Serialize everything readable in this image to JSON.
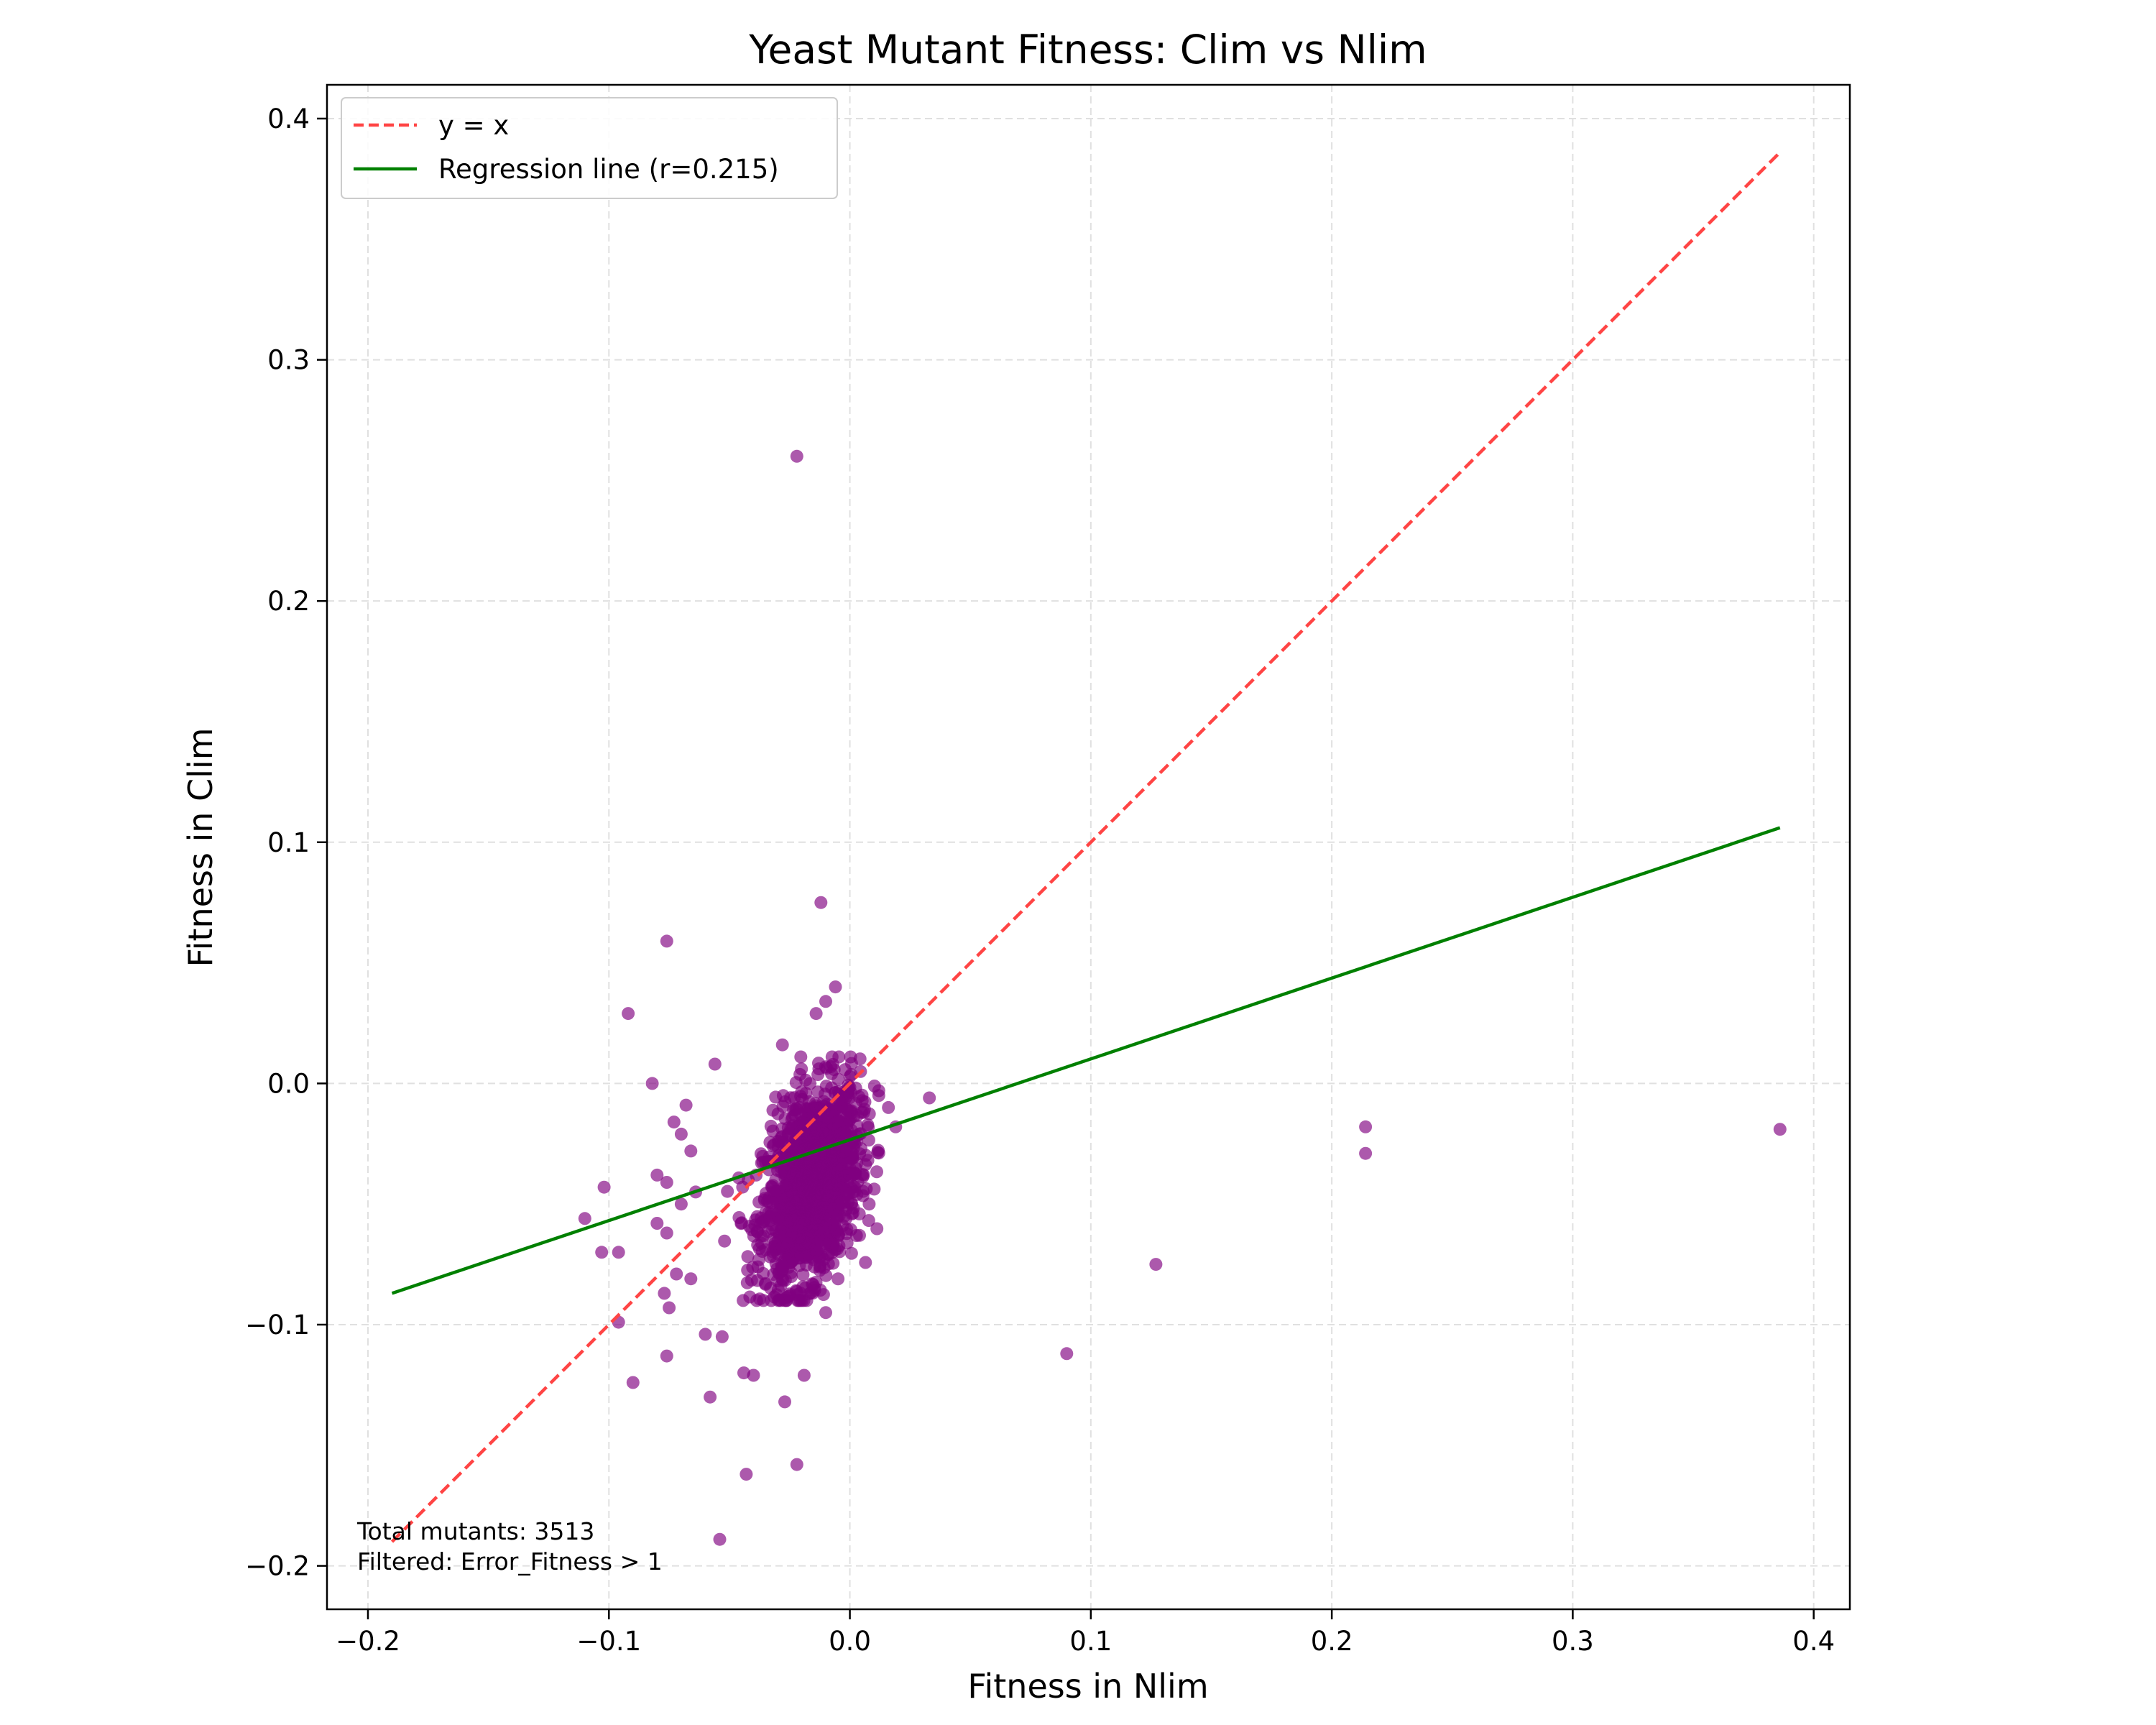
{
  "chart_data": {
    "type": "scatter",
    "title": "Yeast Mutant Fitness: Clim vs Nlim",
    "xlabel": "Fitness in Nlim",
    "ylabel": "Fitness in Clim",
    "xlim": [
      -0.217,
      0.415
    ],
    "ylim": [
      -0.218,
      0.414
    ],
    "x_ticks": [
      -0.2,
      -0.1,
      0.0,
      0.1,
      0.2,
      0.3,
      0.4
    ],
    "x_tick_labels": [
      "−0.2",
      "−0.1",
      "0.0",
      "0.1",
      "0.2",
      "0.3",
      "0.4"
    ],
    "y_ticks": [
      -0.2,
      -0.1,
      0.0,
      0.1,
      0.2,
      0.3,
      0.4
    ],
    "y_tick_labels": [
      "−0.2",
      "−0.1",
      "0.0",
      "0.1",
      "0.2",
      "0.3",
      "0.4"
    ],
    "grid": true,
    "legend_position": "upper-left",
    "colors": {
      "points": "#800080",
      "identity": "#ff4444",
      "regression": "#008000"
    },
    "legend": [
      {
        "label": "y = x",
        "style": "dashed",
        "color": "#ff4444"
      },
      {
        "label": "Regression line (r=0.215)",
        "style": "solid",
        "color": "#008000"
      }
    ],
    "identity_line": {
      "x": [
        -0.19,
        0.386
      ],
      "y": [
        -0.19,
        0.386
      ]
    },
    "regression_line": {
      "x": [
        -0.19,
        0.386
      ],
      "y": [
        -0.087,
        0.106
      ]
    },
    "annotations": [
      "Total mutants: 3513",
      "Filtered: Error_Fitness > 1"
    ],
    "outliers": [
      [
        -0.022,
        0.26
      ],
      [
        -0.012,
        0.075
      ],
      [
        -0.076,
        0.059
      ],
      [
        -0.092,
        0.029
      ],
      [
        -0.006,
        0.04
      ],
      [
        -0.01,
        0.034
      ],
      [
        -0.014,
        0.029
      ],
      [
        -0.028,
        0.016
      ],
      [
        -0.056,
        0.008
      ],
      [
        -0.082,
        0.0
      ],
      [
        -0.068,
        -0.009
      ],
      [
        -0.073,
        -0.016
      ],
      [
        -0.07,
        -0.021
      ],
      [
        -0.066,
        -0.028
      ],
      [
        -0.076,
        -0.041
      ],
      [
        -0.08,
        -0.038
      ],
      [
        -0.11,
        -0.056
      ],
      [
        -0.102,
        -0.043
      ],
      [
        -0.096,
        -0.07
      ],
      [
        -0.103,
        -0.07
      ],
      [
        -0.076,
        -0.062
      ],
      [
        -0.08,
        -0.058
      ],
      [
        -0.07,
        -0.05
      ],
      [
        -0.064,
        -0.045
      ],
      [
        -0.077,
        -0.087
      ],
      [
        -0.072,
        -0.079
      ],
      [
        -0.066,
        -0.081
      ],
      [
        -0.096,
        -0.099
      ],
      [
        -0.09,
        -0.124
      ],
      [
        -0.076,
        -0.113
      ],
      [
        -0.075,
        -0.093
      ],
      [
        -0.06,
        -0.104
      ],
      [
        -0.058,
        -0.13
      ],
      [
        -0.053,
        -0.105
      ],
      [
        -0.044,
        -0.12
      ],
      [
        -0.04,
        -0.121
      ],
      [
        -0.043,
        -0.162
      ],
      [
        -0.022,
        -0.158
      ],
      [
        -0.054,
        -0.189
      ],
      [
        -0.027,
        -0.132
      ],
      [
        -0.019,
        -0.121
      ],
      [
        -0.01,
        -0.095
      ],
      [
        0.019,
        -0.018
      ],
      [
        0.033,
        -0.006
      ],
      [
        0.012,
        -0.003
      ],
      [
        0.016,
        -0.01
      ],
      [
        0.008,
        -0.05
      ],
      [
        0.004,
        -0.063
      ],
      [
        0.09,
        -0.112
      ],
      [
        0.127,
        -0.075
      ],
      [
        0.214,
        -0.018
      ],
      [
        0.214,
        -0.029
      ],
      [
        0.386,
        -0.019
      ]
    ],
    "cluster": {
      "n": 1500,
      "center": [
        -0.016,
        -0.042
      ],
      "sd": [
        0.01,
        0.02
      ],
      "correlation": 0.35,
      "x_range": [
        -0.052,
        0.012
      ],
      "y_range": [
        -0.09,
        0.011
      ]
    }
  }
}
